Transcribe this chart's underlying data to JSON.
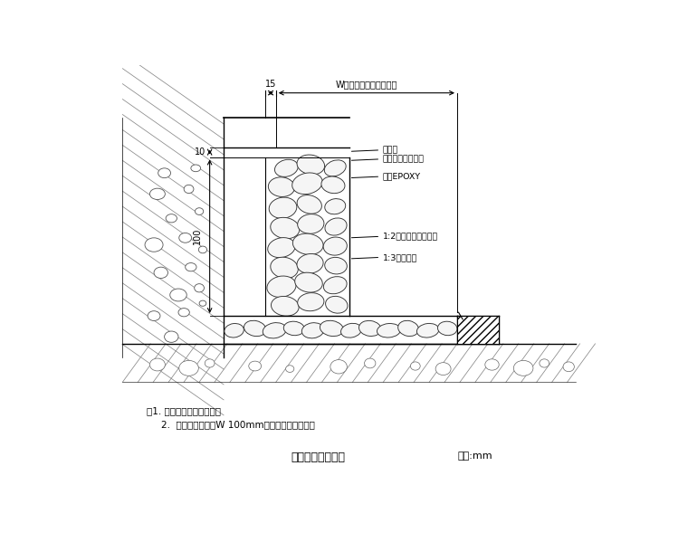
{
  "title": "卵石子踢脚大样图",
  "unit_label": "单位:mm",
  "note1": "注1. 卵石子采天然彩卵石。",
  "note2": "2.  卵件卵石子数涨W 100mm平板电平分制调整。",
  "dim_15": "15",
  "dim_W": "W（另详平面示意详图）",
  "dim_10": "10",
  "dim_100": "100",
  "labels": [
    "粉面层",
    "网骨刷涂一底二度",
    "涂布EPOXY",
    "1:2水泥掺天然彩石粒",
    "1:3水泥砂浆"
  ],
  "bg_color": "#ffffff",
  "line_color": "#000000"
}
